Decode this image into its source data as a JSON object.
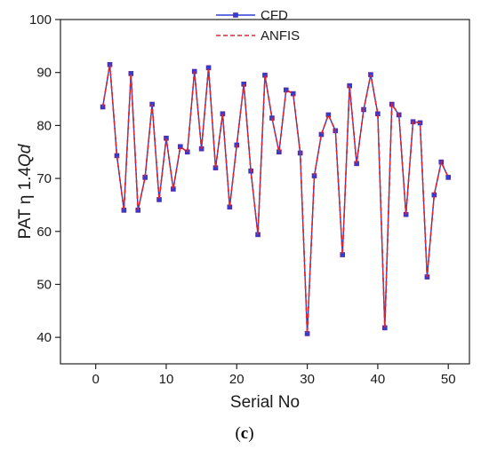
{
  "chart_data": {
    "type": "line",
    "ylabel_parts": [
      "PAT η 1.4",
      "Q",
      "d"
    ],
    "xlabel": "Serial No",
    "xlim": [
      -5,
      53
    ],
    "ylim": [
      35,
      100
    ],
    "xticks": [
      0,
      10,
      20,
      30,
      40,
      50
    ],
    "yticks": [
      40,
      50,
      60,
      70,
      80,
      90,
      100
    ],
    "legend_position": "top-center",
    "series": [
      {
        "name": "CFD",
        "color": "#2b3fd8",
        "line_style": "solid",
        "marker": "square",
        "x": [
          1,
          2,
          3,
          4,
          5,
          6,
          7,
          8,
          9,
          10,
          11,
          12,
          13,
          14,
          15,
          16,
          17,
          18,
          19,
          20,
          21,
          22,
          23,
          24,
          25,
          26,
          27,
          28,
          29,
          30,
          31,
          32,
          33,
          34,
          35,
          36,
          37,
          38,
          39,
          40,
          41,
          42,
          43,
          44,
          45,
          46,
          47,
          48,
          49,
          50
        ],
        "y": [
          83.5,
          91.5,
          74.3,
          64.0,
          89.8,
          64.0,
          70.2,
          84.0,
          66.0,
          77.6,
          68.0,
          76.0,
          75.0,
          90.2,
          75.6,
          90.9,
          72.0,
          82.2,
          64.6,
          76.3,
          87.8,
          71.4,
          59.4,
          89.5,
          81.4,
          75.0,
          86.7,
          86.0,
          74.8,
          40.7,
          70.5,
          78.3,
          82.0,
          79.0,
          55.6,
          87.5,
          72.8,
          83.0,
          89.6,
          82.2,
          41.8,
          84.0,
          82.0,
          63.2,
          80.7,
          80.5,
          51.4,
          66.9,
          73.1,
          70.2
        ]
      },
      {
        "name": "ANFIS",
        "color": "#e0262a",
        "line_style": "dashed",
        "marker": "none",
        "x": [
          1,
          2,
          3,
          4,
          5,
          6,
          7,
          8,
          9,
          10,
          11,
          12,
          13,
          14,
          15,
          16,
          17,
          18,
          19,
          20,
          21,
          22,
          23,
          24,
          25,
          26,
          27,
          28,
          29,
          30,
          31,
          32,
          33,
          34,
          35,
          36,
          37,
          38,
          39,
          40,
          41,
          42,
          43,
          44,
          45,
          46,
          47,
          48,
          49,
          50
        ],
        "y": [
          83.5,
          91.5,
          74.3,
          64.0,
          89.8,
          64.0,
          70.2,
          84.0,
          66.0,
          77.6,
          68.0,
          76.0,
          75.0,
          90.2,
          75.6,
          90.9,
          72.0,
          82.2,
          64.6,
          76.3,
          87.8,
          71.4,
          59.4,
          89.5,
          81.4,
          75.0,
          86.7,
          86.0,
          74.8,
          40.7,
          70.5,
          78.3,
          82.0,
          79.0,
          55.6,
          87.5,
          72.8,
          83.0,
          89.6,
          82.2,
          41.8,
          84.0,
          82.0,
          63.2,
          80.7,
          80.5,
          51.4,
          66.9,
          73.1,
          70.2
        ]
      }
    ]
  },
  "caption": {
    "open": "(",
    "letter": "c",
    "close": ")"
  }
}
